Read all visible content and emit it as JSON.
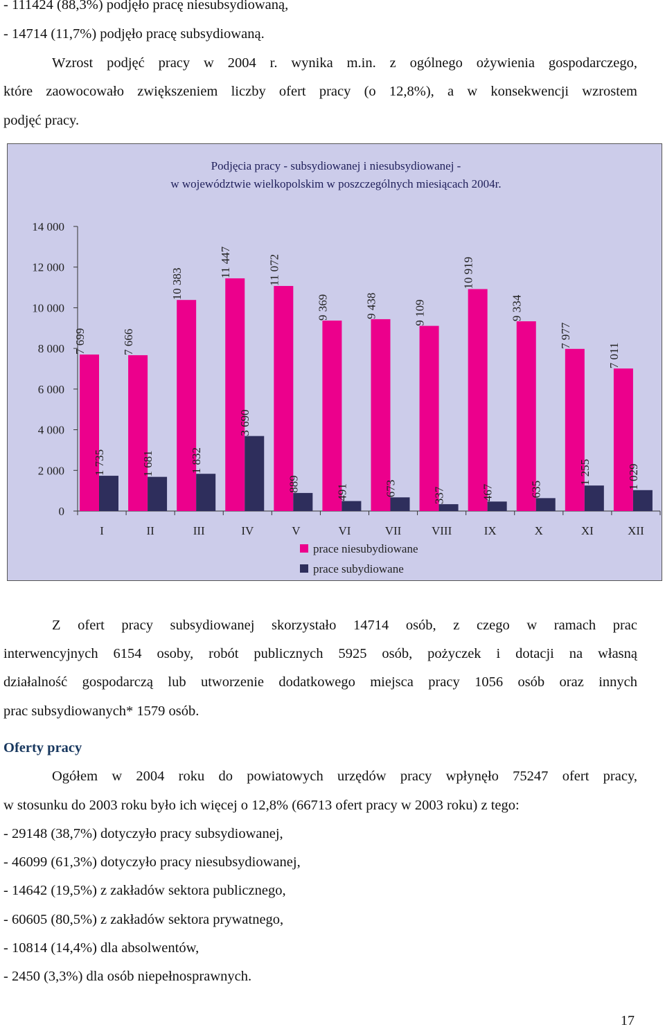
{
  "intro_lines": [
    "- 111424 (88,3%) podjęło pracę niesubsydiowaną,",
    "- 14714 (11,7%) podjęło pracę subsydiowaną."
  ],
  "paragraph1": {
    "line1": "Wzrost podjęć pracy w 2004 r. wynika m.in. z ogólnego ożywienia gospodarczego,",
    "line2": "które zaowocowało zwiększeniem liczby ofert pracy (o 12,8%), a w konsekwencji wzrostem",
    "line3": "podjęć pracy."
  },
  "chart_data": {
    "type": "bar",
    "title_line1": "Podjęcia pracy - subsydiowanej i niesubsydiowanej -",
    "title_line2": "w województwie wielkopolskim w poszczególnych miesiącach 2004r.",
    "categories": [
      "I",
      "II",
      "III",
      "IV",
      "V",
      "VI",
      "VII",
      "VIII",
      "IX",
      "X",
      "XI",
      "XII"
    ],
    "series": [
      {
        "name": "prace niesubydiowane",
        "color": "#ec008c",
        "values": [
          7699,
          7666,
          10383,
          11447,
          11072,
          9369,
          9438,
          9109,
          10919,
          9334,
          7977,
          7011
        ],
        "labels": [
          "7 699",
          "7 666",
          "10 383",
          "11 447",
          "11 072",
          "9 369",
          "9 438",
          "9 109",
          "10 919",
          "9 334",
          "7 977",
          "7 011"
        ]
      },
      {
        "name": "prace subydiowane",
        "color": "#2e2e5c",
        "values": [
          1735,
          1681,
          1832,
          3690,
          889,
          491,
          673,
          337,
          467,
          635,
          1255,
          1029
        ],
        "labels": [
          "1 735",
          "1 681",
          "1 832",
          "3 690",
          "889",
          "491",
          "673",
          "337",
          "467",
          "635",
          "1 255",
          "1 029"
        ]
      }
    ],
    "ylim": [
      0,
      14000
    ],
    "yticks": [
      0,
      2000,
      4000,
      6000,
      8000,
      10000,
      12000,
      14000
    ],
    "ytick_labels": [
      "0",
      "2 000",
      "4 000",
      "6 000",
      "8 000",
      "10 000",
      "12 000",
      "14 000"
    ],
    "background": "#ccccea",
    "legend_position": "bottom"
  },
  "paragraph2": {
    "line1": "Z ofert pracy subsydiowanej skorzystało 14714 osób, z czego w ramach prac",
    "line2": "interwencyjnych 6154 osoby, robót publicznych 5925 osób, pożyczek i dotacji na własną",
    "line3": "działalność gospodarczą lub utworzenie dodatkowego miejsca pracy 1056 osób oraz innych",
    "line4": "prac subsydiowanych* 1579 osób."
  },
  "section_heading": "Oferty pracy",
  "paragraph3": {
    "line1": "Ogółem w 2004 roku do powiatowych urzędów pracy wpłynęło 75247 ofert pracy,",
    "line2": "w stosunku do 2003 roku było ich więcej o 12,8% (66713 ofert pracy w 2003 roku) z tego:"
  },
  "list_items": [
    "- 29148 (38,7%) dotyczyło pracy subsydiowanej,",
    "- 46099 (61,3%) dotyczyło pracy niesubsydiowanej,",
    "- 14642 (19,5%) z zakładów sektora publicznego,",
    "- 60605 (80,5%) z zakładów sektora prywatnego,",
    "- 10814 (14,4%) dla absolwentów,",
    "- 2450 (3,3%) dla osób niepełnosprawnych."
  ],
  "page_number": "17"
}
